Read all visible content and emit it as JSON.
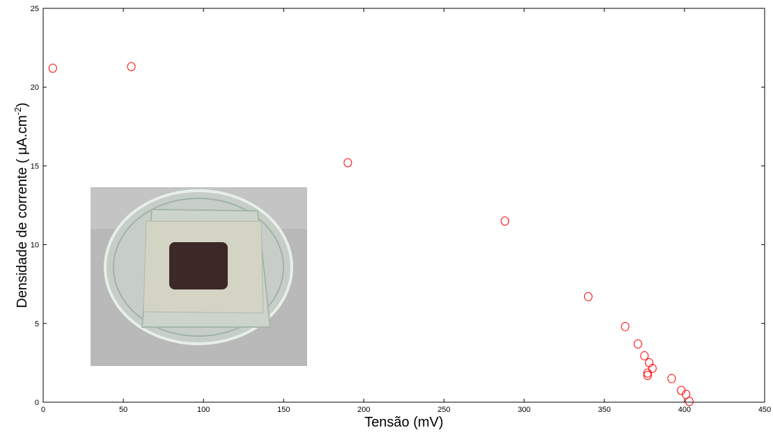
{
  "chart_data": {
    "type": "scatter",
    "xlabel": "Tensão (mV)",
    "ylabel": [
      "Densidade de corrente ( µA.cm",
      "-2",
      ")"
    ],
    "x": [
      6,
      55,
      190,
      288,
      340,
      363,
      371,
      375,
      378,
      380,
      377,
      377,
      392,
      398,
      401,
      403
    ],
    "values": [
      21.2,
      21.3,
      15.2,
      11.5,
      6.7,
      4.8,
      3.7,
      2.95,
      2.5,
      2.15,
      1.85,
      1.7,
      1.5,
      0.75,
      0.5,
      0.05
    ],
    "color": "#ff0000",
    "xlim": [
      0,
      450
    ],
    "xticks": [
      0,
      50,
      100,
      150,
      200,
      250,
      300,
      350,
      400,
      450
    ],
    "ylim": [
      0,
      25
    ],
    "yticks": [
      0,
      5,
      10,
      15,
      20,
      25
    ]
  }
}
